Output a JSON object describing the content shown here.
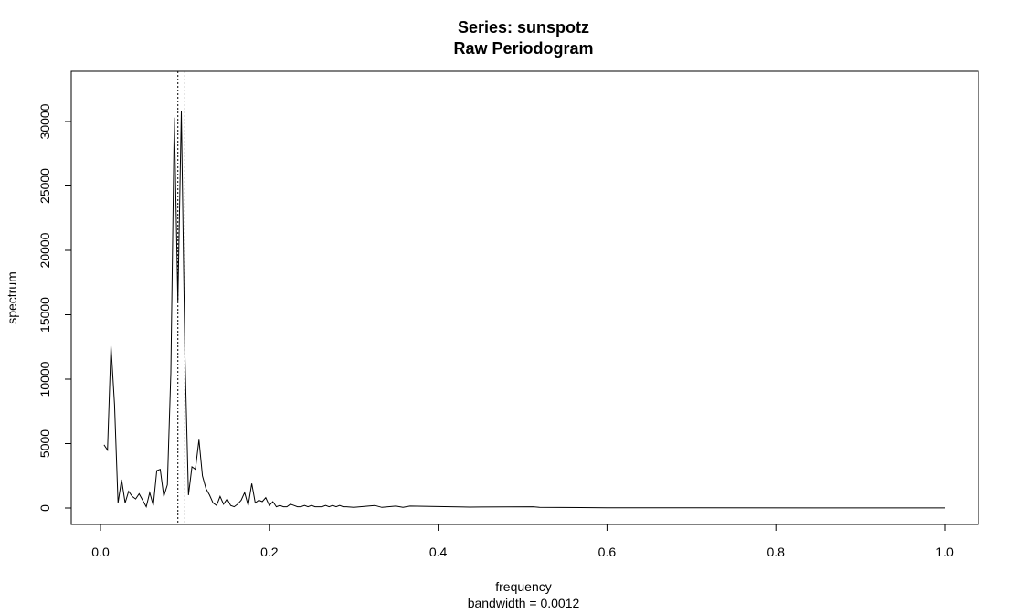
{
  "chart_data": {
    "type": "line",
    "title": "Series: sunspotz",
    "subtitle": "Raw Periodogram",
    "xlabel": "frequency",
    "xsublabel": "bandwidth = 0.0012",
    "ylabel": "spectrum",
    "xlim": [
      0.0,
      1.0
    ],
    "ylim": [
      0,
      32000
    ],
    "xticks": [
      "0.0",
      "0.2",
      "0.4",
      "0.6",
      "0.8",
      "1.0"
    ],
    "xtick_values": [
      0.0,
      0.2,
      0.4,
      0.6,
      0.8,
      1.0
    ],
    "yticks": [
      "0",
      "5000",
      "10000",
      "15000",
      "20000",
      "25000",
      "30000"
    ],
    "ytick_values": [
      0,
      5000,
      10000,
      15000,
      20000,
      25000,
      30000
    ],
    "grid": false,
    "vlines": [
      0.0917,
      0.1
    ],
    "series": [
      {
        "x": [
          0.0042,
          0.0083,
          0.0125,
          0.0167,
          0.0208,
          0.025,
          0.0292,
          0.0333,
          0.0375,
          0.0417,
          0.0458,
          0.05,
          0.0542,
          0.0583,
          0.0625,
          0.0667,
          0.0708,
          0.075,
          0.0792,
          0.0833,
          0.0875,
          0.0917,
          0.0958,
          0.1,
          0.1042,
          0.1083,
          0.1125,
          0.1167,
          0.1208,
          0.125,
          0.1292,
          0.1333,
          0.1375,
          0.1417,
          0.1458,
          0.15,
          0.1542,
          0.1583,
          0.1625,
          0.1667,
          0.1708,
          0.175,
          0.1792,
          0.1833,
          0.1875,
          0.1917,
          0.1958,
          0.2,
          0.2042,
          0.2083,
          0.2125,
          0.2167,
          0.2208,
          0.225,
          0.2292,
          0.2333,
          0.2375,
          0.2417,
          0.2458,
          0.25,
          0.2542,
          0.2583,
          0.2625,
          0.2667,
          0.2708,
          0.275,
          0.2792,
          0.2833,
          0.2875,
          0.2917,
          0.3,
          0.325,
          0.3333,
          0.35,
          0.3583,
          0.3667,
          0.4375,
          0.45,
          0.5125,
          0.52,
          0.6,
          1.0
        ],
        "y": [
          4900,
          4500,
          12600,
          8000,
          400,
          2200,
          400,
          1300,
          900,
          700,
          1100,
          600,
          100,
          1200,
          200,
          2900,
          3000,
          900,
          1800,
          10500,
          30300,
          16000,
          30800,
          12000,
          1000,
          3200,
          3000,
          5300,
          2500,
          1500,
          1000,
          400,
          200,
          900,
          300,
          700,
          200,
          100,
          300,
          600,
          1200,
          200,
          1900,
          400,
          600,
          500,
          800,
          200,
          500,
          100,
          200,
          100,
          100,
          300,
          200,
          100,
          100,
          200,
          100,
          200,
          100,
          100,
          100,
          200,
          100,
          200,
          100,
          200,
          100,
          100,
          50,
          200,
          50,
          150,
          50,
          150,
          70,
          80,
          100,
          60,
          20,
          10
        ]
      }
    ]
  }
}
